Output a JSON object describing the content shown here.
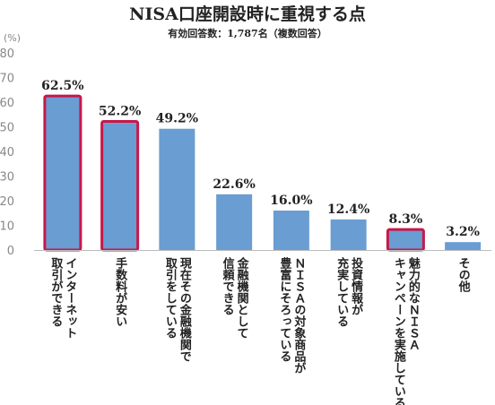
{
  "chart_data": {
    "type": "bar",
    "title": "NISA口座開設時に重視する点",
    "subtitle": "有効回答数：1,787名（複数回答）",
    "unit_label": "(%)",
    "ylim": [
      0,
      80
    ],
    "yticks": [
      "0",
      "10",
      "20",
      "30",
      "40",
      "50",
      "60",
      "70",
      "80"
    ],
    "grid": false,
    "categories": [
      [
        "インターネット",
        "取引ができる"
      ],
      [
        "手数料が安い"
      ],
      [
        "現在その金融機関で",
        "取引をしている"
      ],
      [
        "金融機関として",
        "信頼できる"
      ],
      [
        "ＮＩＳＡの対象商品が",
        "豊富にそろっている"
      ],
      [
        "投資情報が",
        "充実している"
      ],
      [
        "魅力的なＮＩＳＡ",
        "キャンペーンを実施している"
      ],
      [
        "その他"
      ]
    ],
    "values": [
      62.5,
      52.2,
      49.2,
      22.6,
      16.0,
      12.4,
      8.3,
      3.2
    ],
    "value_labels": [
      "62.5%",
      "52.2%",
      "49.2%",
      "22.6%",
      "16.0%",
      "12.4%",
      "8.3%",
      "3.2%"
    ],
    "highlighted": [
      true,
      true,
      false,
      false,
      false,
      false,
      true,
      false
    ],
    "colors": {
      "bar": "#6a9dd2",
      "highlight_border": "#c8174a",
      "axis": "#bbbbbb"
    }
  }
}
